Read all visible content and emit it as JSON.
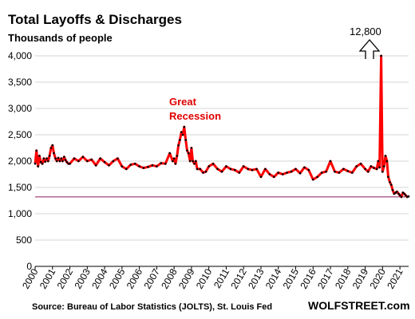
{
  "chart_data": {
    "type": "line",
    "title": "Total Layoffs & Discharges",
    "subtitle": "Thousands of people",
    "xlabel": "",
    "ylabel": "",
    "x_range": [
      2000,
      2021.5
    ],
    "ylim": [
      0,
      4000
    ],
    "y_ticks": [
      0,
      500,
      1000,
      1500,
      2000,
      2500,
      3000,
      3500,
      4000
    ],
    "y_tick_labels": [
      "0",
      "500",
      "1,000",
      "1,500",
      "2,000",
      "2,500",
      "3,000",
      "3,500",
      "4,000"
    ],
    "x_tick_labels": [
      "2000",
      "2001",
      "2002",
      "2003",
      "2004",
      "2005",
      "2006",
      "2007",
      "2008",
      "2009",
      "2010",
      "2011",
      "2012",
      "2013",
      "2014",
      "2015",
      "2016",
      "2017",
      "2018",
      "2019",
      "2020",
      "2021"
    ],
    "grid": "horizontal",
    "reference_line": 1320,
    "series": [
      {
        "x": [
          2000.0,
          2000.08,
          2000.17,
          2000.25,
          2000.33,
          2000.42,
          2000.5,
          2000.58,
          2000.67,
          2000.75,
          2000.83,
          2000.92,
          2001.0,
          2001.08,
          2001.17,
          2001.25,
          2001.33,
          2001.42,
          2001.5,
          2001.58,
          2001.67,
          2001.75,
          2001.83,
          2001.92,
          2002.0,
          2002.25,
          2002.5,
          2002.75,
          2003.0,
          2003.25,
          2003.5,
          2003.75,
          2004.0,
          2004.25,
          2004.5,
          2004.75,
          2005.0,
          2005.25,
          2005.5,
          2005.75,
          2006.0,
          2006.25,
          2006.5,
          2006.75,
          2007.0,
          2007.25,
          2007.5,
          2007.75,
          2007.92,
          2008.0,
          2008.08,
          2008.17,
          2008.25,
          2008.33,
          2008.42,
          2008.5,
          2008.58,
          2008.67,
          2008.75,
          2008.83,
          2008.92,
          2009.0,
          2009.08,
          2009.17,
          2009.25,
          2009.33,
          2009.5,
          2009.67,
          2009.83,
          2010.0,
          2010.25,
          2010.5,
          2010.75,
          2011.0,
          2011.25,
          2011.5,
          2011.75,
          2012.0,
          2012.25,
          2012.5,
          2012.75,
          2013.0,
          2013.25,
          2013.5,
          2013.75,
          2014.0,
          2014.25,
          2014.5,
          2014.75,
          2015.0,
          2015.25,
          2015.5,
          2015.75,
          2016.0,
          2016.25,
          2016.5,
          2016.75,
          2017.0,
          2017.25,
          2017.5,
          2017.75,
          2018.0,
          2018.25,
          2018.5,
          2018.75,
          2019.0,
          2019.17,
          2019.33,
          2019.5,
          2019.67,
          2019.75,
          2019.83,
          2019.92,
          2020.0,
          2020.08,
          2020.17,
          2020.25,
          2020.33,
          2020.42,
          2020.5,
          2020.58,
          2020.67,
          2020.75,
          2020.83,
          2020.92,
          2021.0,
          2021.08,
          2021.17,
          2021.25,
          2021.33,
          2021.42,
          2021.5
        ],
        "y": [
          1950,
          2200,
          1900,
          2100,
          1980,
          1950,
          2050,
          1990,
          2050,
          2000,
          2100,
          2250,
          2300,
          2150,
          2050,
          2000,
          2060,
          2000,
          2050,
          2000,
          2080,
          2020,
          1980,
          1950,
          1950,
          2050,
          2000,
          2080,
          2000,
          2030,
          1920,
          2050,
          1980,
          1920,
          2000,
          2050,
          1900,
          1850,
          1930,
          1950,
          1900,
          1870,
          1890,
          1920,
          1900,
          1960,
          1950,
          2150,
          2000,
          2050,
          1950,
          2100,
          2300,
          2400,
          2550,
          2500,
          2650,
          2400,
          2200,
          2150,
          2000,
          2250,
          2000,
          1950,
          2000,
          1850,
          1850,
          1780,
          1800,
          1900,
          1950,
          1850,
          1800,
          1900,
          1850,
          1830,
          1780,
          1900,
          1850,
          1830,
          1850,
          1700,
          1850,
          1750,
          1700,
          1780,
          1750,
          1780,
          1800,
          1850,
          1770,
          1880,
          1830,
          1650,
          1700,
          1780,
          1800,
          2000,
          1800,
          1780,
          1850,
          1810,
          1780,
          1900,
          1950,
          1850,
          1800,
          1900,
          1870,
          1850,
          2000,
          1880,
          4000,
          1800,
          1900,
          2100,
          2000,
          1700,
          1600,
          1550,
          1450,
          1380,
          1400,
          1420,
          1380,
          1350,
          1320,
          1400,
          1380,
          1350,
          1320,
          1330
        ]
      }
    ],
    "annotations": [
      {
        "text_line1": "Great",
        "text_line2": "Recession",
        "color": "#e00000"
      },
      {
        "text": "12,800",
        "off_scale_x": 2019.25
      }
    ],
    "line_color": "#ff0000",
    "dot_color": "#000000",
    "ref_line_color": "#8b1a5a"
  },
  "source": "Source: Bureau of Labor Statistics (JOLTS), St. Louis Fed",
  "brand": "WOLFSTREET.com"
}
